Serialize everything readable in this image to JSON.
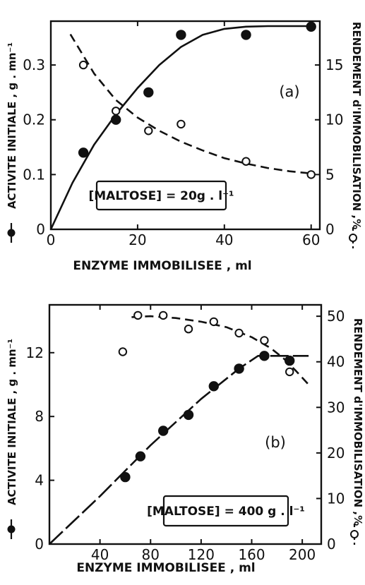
{
  "chart_data": [
    {
      "type": "scatter",
      "panel_label": "(a)",
      "xlabel": "ENZYME IMMOBILISEE , ml",
      "ylabel": "ACTIVITE INITIALE , g . mn⁻¹",
      "y2label": "RENDEMENT d'IMMOBILISATION ,%",
      "annotation": "[MALTOSE] = 20g . l⁻¹",
      "xlim": [
        0,
        62
      ],
      "ylim": [
        0,
        0.38
      ],
      "y2lim": [
        0,
        19
      ],
      "xticks": [
        0,
        20,
        40,
        60
      ],
      "yticks": [
        0,
        0.1,
        0.2,
        0.3
      ],
      "ytick_labels": [
        "0",
        "0.1",
        "0.2",
        "0.3"
      ],
      "y2ticks": [
        0,
        5,
        10,
        15
      ],
      "grid": false,
      "series": [
        {
          "marker": "filled-circle",
          "axis": "left",
          "line": "solid",
          "x": [
            7.5,
            15,
            22.5,
            30,
            45,
            60
          ],
          "y": [
            0.14,
            0.2,
            0.25,
            0.355,
            0.355,
            0.37
          ],
          "curve_x": [
            0,
            5,
            10,
            15,
            20,
            25,
            30,
            35,
            40,
            45,
            50,
            55,
            60
          ],
          "curve_y": [
            0,
            0.085,
            0.155,
            0.21,
            0.258,
            0.3,
            0.333,
            0.355,
            0.366,
            0.37,
            0.371,
            0.371,
            0.371
          ]
        },
        {
          "marker": "open-circle",
          "axis": "right",
          "line": "dashed",
          "x": [
            7.5,
            15,
            22.5,
            30,
            45,
            60
          ],
          "y": [
            15,
            10.8,
            9,
            9.6,
            6.2,
            5
          ],
          "curve_x": [
            4.5,
            10,
            15,
            20,
            25,
            30,
            35,
            40,
            45,
            50,
            55,
            60
          ],
          "curve_y": [
            17.8,
            14.2,
            11.8,
            10.2,
            9.0,
            8.0,
            7.2,
            6.5,
            6.0,
            5.6,
            5.3,
            5.1
          ]
        }
      ]
    },
    {
      "type": "scatter",
      "panel_label": "(b)",
      "xlabel": "ENZYME IMMOBILISEE , ml",
      "ylabel": "ACTIVITE INITIALE , g . mn⁻¹",
      "y2label": "RENDEMENT d'IMMOBILISATION ,%",
      "annotation": "[MALTOSE] = 400 g . l⁻¹",
      "xlim": [
        0,
        215
      ],
      "ylim": [
        0,
        15
      ],
      "y2lim": [
        0,
        52.5
      ],
      "xticks": [
        40,
        80,
        120,
        160,
        200
      ],
      "yticks": [
        0,
        4,
        8,
        12
      ],
      "y2ticks": [
        0,
        10,
        20,
        30,
        40,
        50
      ],
      "grid": false,
      "series": [
        {
          "marker": "filled-circle",
          "axis": "left",
          "line": "dash-dot",
          "x": [
            60,
            72,
            90,
            110,
            130,
            150,
            170,
            190
          ],
          "y": [
            4.2,
            5.5,
            7.1,
            8.1,
            9.9,
            11.0,
            11.8,
            11.5
          ],
          "curve_x": [
            0,
            40,
            80,
            120,
            150,
            165,
            175,
            185,
            195,
            205
          ],
          "curve_y": [
            0,
            3.0,
            6.2,
            9.1,
            11.0,
            11.8,
            11.8,
            11.8,
            11.8,
            11.8
          ]
        },
        {
          "marker": "open-circle",
          "axis": "right",
          "line": "dashed",
          "x": [
            58,
            70,
            90,
            110,
            130,
            150,
            170,
            190
          ],
          "y": [
            42.2,
            50.2,
            50.2,
            47.2,
            48.8,
            46.3,
            44.7,
            37.8
          ],
          "curve_x": [
            65,
            80,
            100,
            120,
            140,
            160,
            175,
            185,
            195,
            205
          ],
          "curve_y": [
            49.8,
            50.0,
            49.6,
            48.8,
            47.6,
            45.4,
            43.0,
            40.8,
            38.0,
            35.0
          ]
        }
      ]
    }
  ]
}
